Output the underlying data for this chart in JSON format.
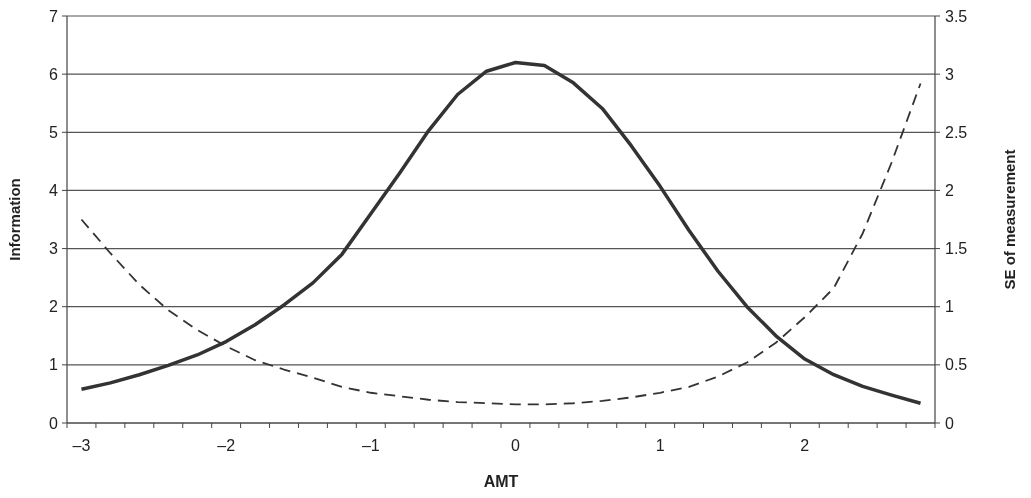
{
  "chart_data": {
    "type": "line",
    "xlabel": "AMT",
    "ylabel": "Information",
    "y2label": "SE of measurement",
    "categories": [
      "–3",
      null,
      null,
      null,
      null,
      "–2",
      null,
      null,
      null,
      null,
      "–1",
      null,
      null,
      null,
      null,
      "0",
      null,
      null,
      null,
      null,
      "1",
      null,
      null,
      null,
      null,
      "2",
      null,
      null,
      null,
      null
    ],
    "series": [
      {
        "color": "#333333",
        "line_style": "solid",
        "values": [
          0.58,
          0.69,
          0.83,
          0.99,
          1.17,
          1.4,
          1.69,
          2.03,
          2.41,
          2.9,
          3.6,
          4.3,
          5.03,
          5.65,
          6.05,
          6.2,
          6.15,
          5.85,
          5.41,
          4.77,
          4.07,
          3.31,
          2.61,
          2.0,
          1.5,
          1.1,
          0.83,
          0.63,
          0.48,
          0.34
        ]
      },
      {
        "color": "#333333",
        "line_style": "dashed",
        "axis": "y2",
        "values": [
          1.75,
          1.46,
          1.19,
          0.97,
          0.8,
          0.66,
          0.54,
          0.46,
          0.39,
          0.31,
          0.26,
          0.23,
          0.2,
          0.18,
          0.17,
          0.16,
          0.16,
          0.17,
          0.19,
          0.22,
          0.26,
          0.31,
          0.4,
          0.52,
          0.69,
          0.91,
          1.16,
          1.63,
          2.24,
          2.92
        ]
      }
    ],
    "ylim": [
      0,
      7
    ],
    "yticks": [
      0,
      1,
      2,
      3,
      4,
      5,
      6,
      7
    ],
    "y2lim": [
      0,
      3.5
    ],
    "y2ticks": [
      0,
      0.5,
      1,
      1.5,
      2,
      2.5,
      3,
      3.5
    ],
    "grid": "y",
    "marker": "none"
  }
}
